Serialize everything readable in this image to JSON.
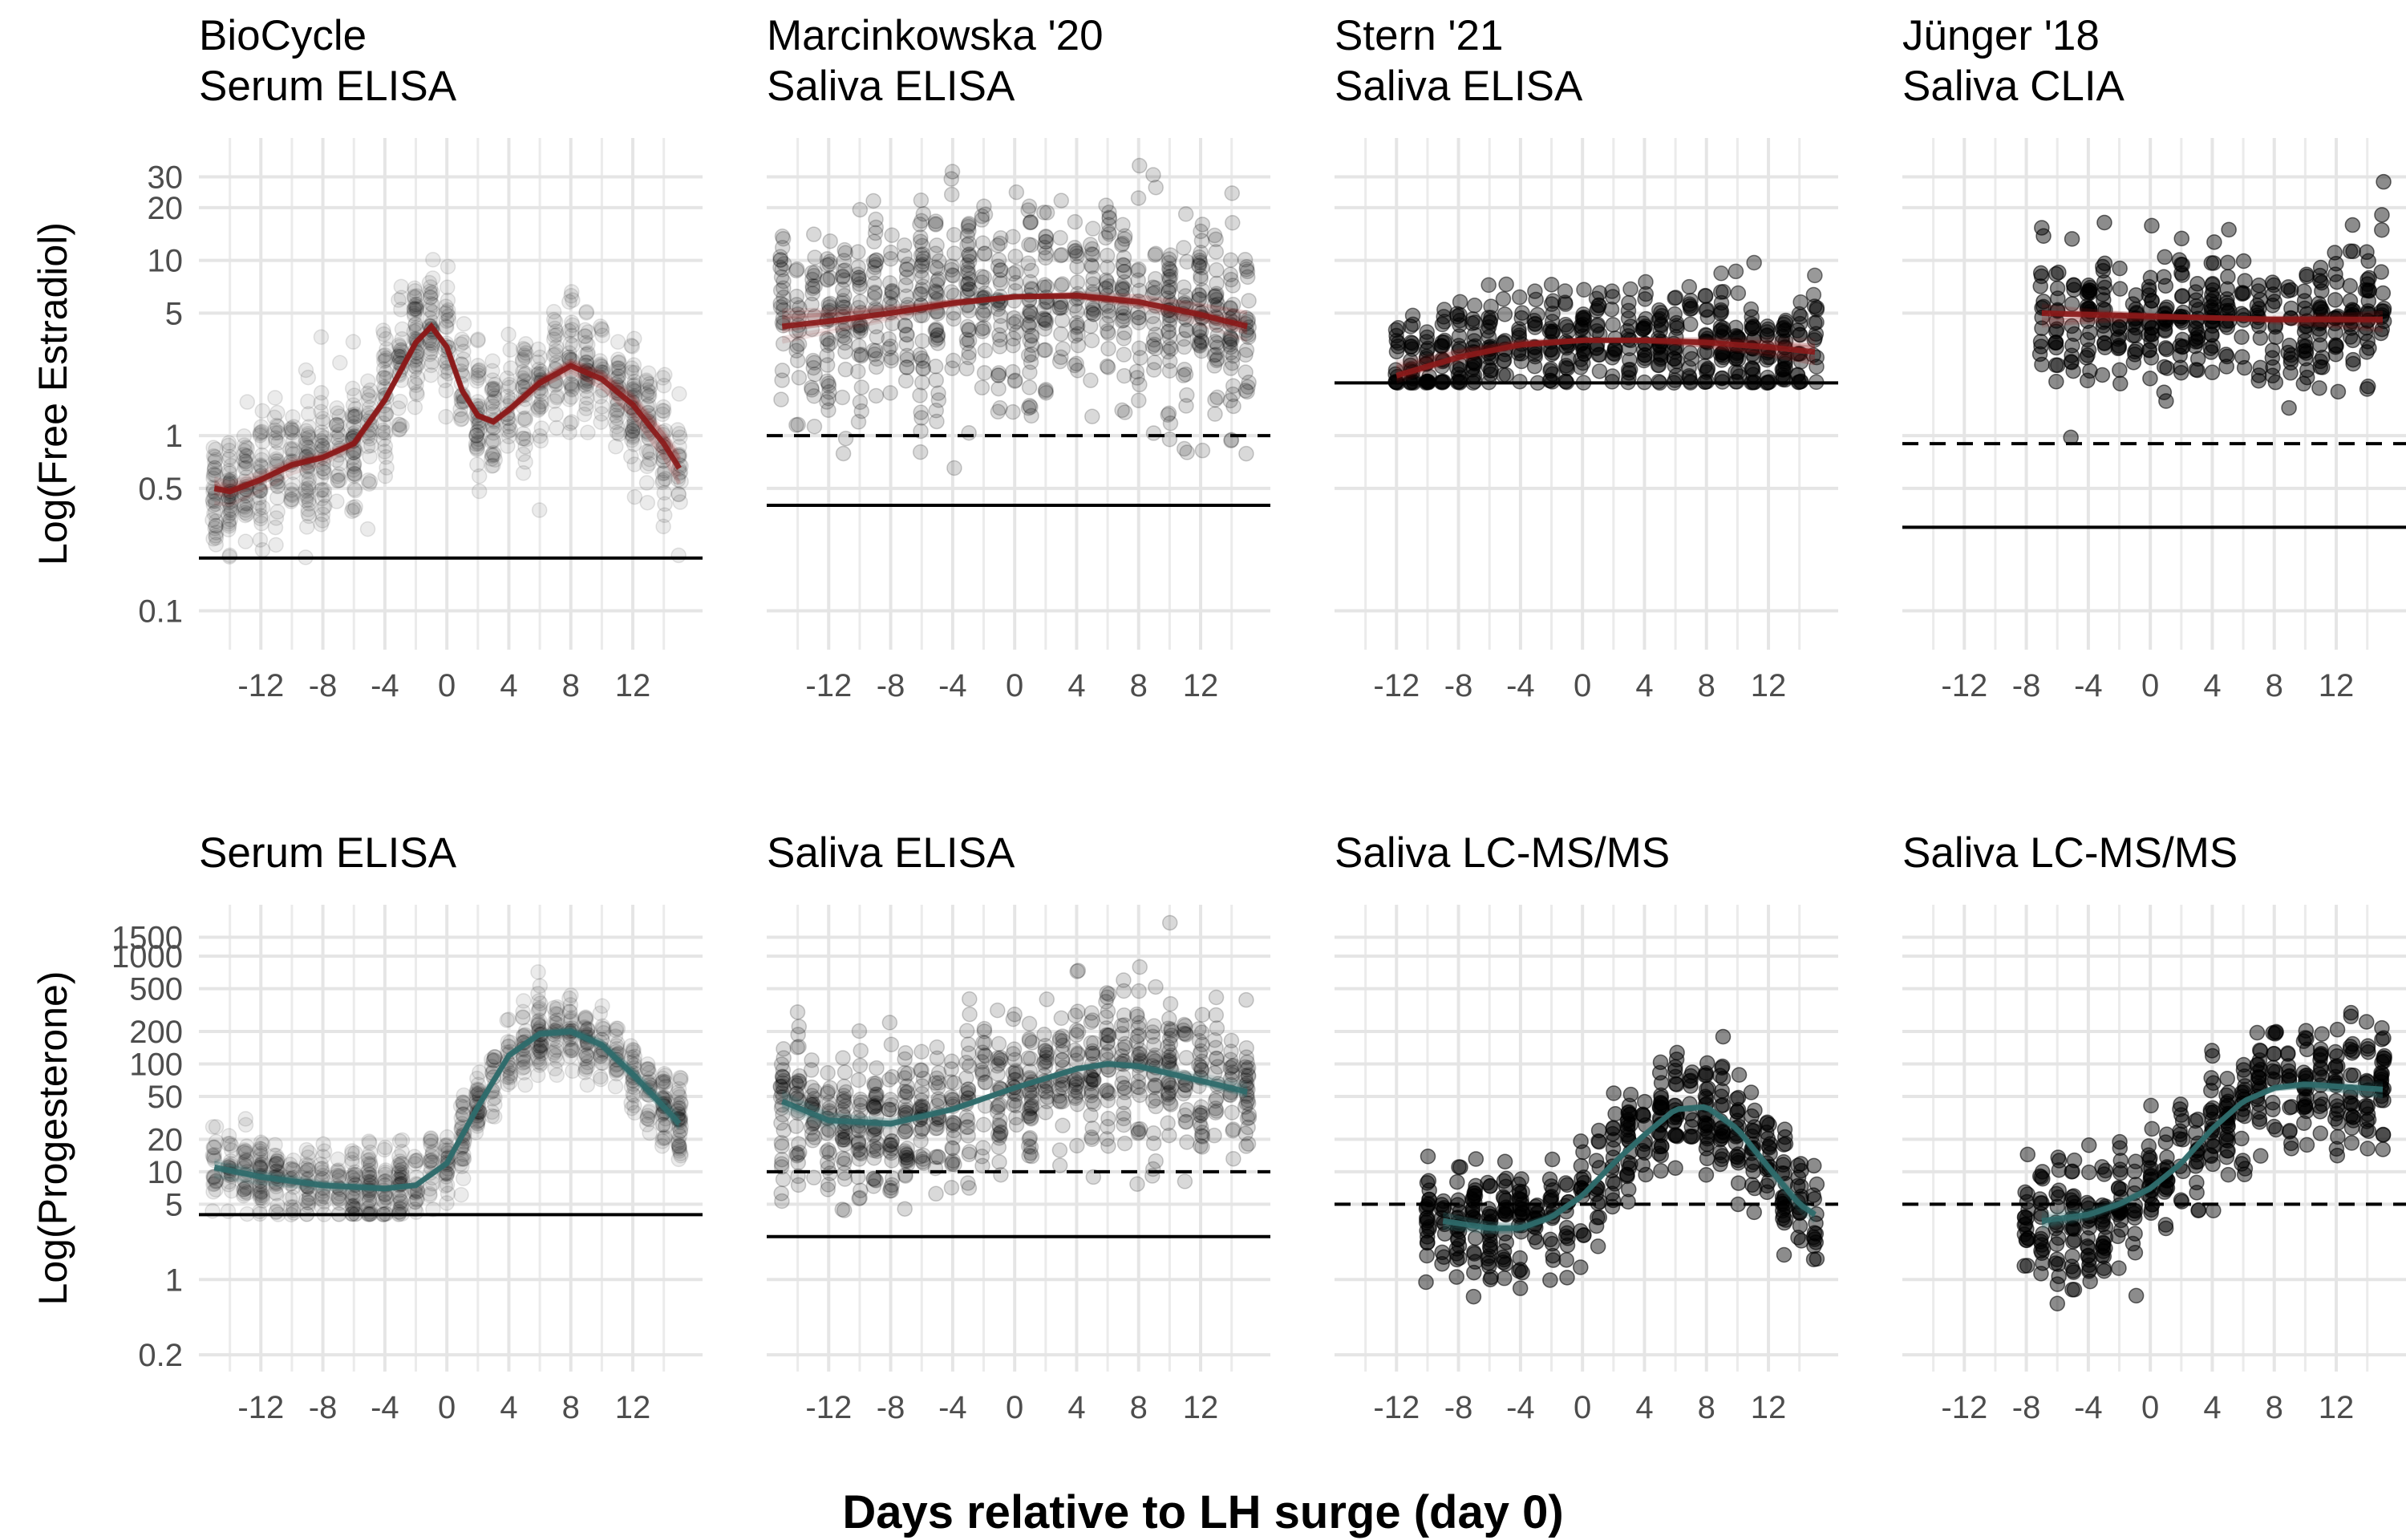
{
  "figure": {
    "xlabel": "Days relative to LH surge (day 0)"
  },
  "colors": {
    "estradiol": "#8b1a1a",
    "progesterone": "#2f6b6b",
    "points": "#000000",
    "grid": "#ebebeb"
  },
  "chart_data": [
    {
      "type": "scatter",
      "row": 0,
      "col": 0,
      "title_line1": "BioCycle",
      "title_line2": "Serum ELISA",
      "ylabel": "Log(Free Estradiol)",
      "x_ticks": [
        -12,
        -8,
        -4,
        0,
        4,
        8,
        12
      ],
      "xlim": [
        -16,
        16.5
      ],
      "y_scale": "log",
      "ylim": [
        0.06,
        50
      ],
      "y_ticks": [
        0.1,
        0.5,
        1,
        5,
        10,
        20,
        30
      ],
      "y_tick_labels": [
        "0.1",
        "0.5",
        "1",
        "5",
        "10",
        "20",
        "30"
      ],
      "point_alpha": 0.08,
      "x_range": [
        -15,
        15
      ],
      "lod_solid": 0.2,
      "lod_dashed": null,
      "spread_low": 0.5,
      "spread_high": 2.0,
      "fit": [
        [
          -15,
          0.5
        ],
        [
          -14,
          0.48
        ],
        [
          -12,
          0.56
        ],
        [
          -10,
          0.68
        ],
        [
          -8,
          0.75
        ],
        [
          -6,
          0.9
        ],
        [
          -4,
          1.6
        ],
        [
          -2,
          3.4
        ],
        [
          -1,
          4.2
        ],
        [
          0,
          3.2
        ],
        [
          1,
          1.8
        ],
        [
          2,
          1.3
        ],
        [
          3,
          1.2
        ],
        [
          4,
          1.4
        ],
        [
          6,
          2.0
        ],
        [
          8,
          2.5
        ],
        [
          10,
          2.1
        ],
        [
          12,
          1.5
        ],
        [
          14,
          0.9
        ],
        [
          15,
          0.65
        ]
      ]
    },
    {
      "type": "scatter",
      "row": 0,
      "col": 1,
      "title_line1": "Marcinkowska '20",
      "title_line2": "Saliva ELISA",
      "x_ticks": [
        -12,
        -8,
        -4,
        0,
        4,
        8,
        12
      ],
      "xlim": [
        -16,
        16.5
      ],
      "y_scale": "log",
      "ylim": [
        0.06,
        50
      ],
      "y_ticks": [
        0.1,
        0.5,
        1,
        5,
        10,
        20,
        30
      ],
      "point_alpha": 0.15,
      "x_range": [
        -15,
        15
      ],
      "lod_solid": 0.4,
      "lod_dashed": 1.0,
      "spread_low": 0.3,
      "spread_high": 3.0,
      "fit": [
        [
          -15,
          4.2
        ],
        [
          -12,
          4.5
        ],
        [
          -8,
          5.0
        ],
        [
          -4,
          5.7
        ],
        [
          0,
          6.2
        ],
        [
          4,
          6.3
        ],
        [
          8,
          5.8
        ],
        [
          12,
          4.9
        ],
        [
          15,
          4.2
        ]
      ]
    },
    {
      "type": "scatter",
      "row": 0,
      "col": 2,
      "title_line1": "Stern '21",
      "title_line2": "Saliva ELISA",
      "x_ticks": [
        -12,
        -8,
        -4,
        0,
        4,
        8,
        12
      ],
      "xlim": [
        -16,
        16.5
      ],
      "y_scale": "log",
      "ylim": [
        0.06,
        50
      ],
      "y_ticks": [
        0.1,
        0.5,
        1,
        5,
        10,
        20,
        30
      ],
      "point_alpha": 0.4,
      "x_range": [
        -12,
        15
      ],
      "lod_solid": 2.0,
      "lod_dashed": null,
      "spread_low": 0.55,
      "spread_high": 1.9,
      "fit": [
        [
          -12,
          2.2
        ],
        [
          -8,
          2.8
        ],
        [
          -4,
          3.3
        ],
        [
          0,
          3.5
        ],
        [
          4,
          3.5
        ],
        [
          8,
          3.4
        ],
        [
          12,
          3.2
        ],
        [
          15,
          3.0
        ]
      ]
    },
    {
      "type": "scatter",
      "row": 0,
      "col": 3,
      "title_line1": "Jünger '18",
      "title_line2": "Saliva CLIA",
      "x_ticks": [
        -12,
        -8,
        -4,
        0,
        4,
        8,
        12
      ],
      "xlim": [
        -16,
        16.5
      ],
      "y_scale": "log",
      "ylim": [
        0.06,
        50
      ],
      "y_ticks": [
        0.1,
        0.5,
        1,
        5,
        10,
        20,
        30
      ],
      "point_alpha": 0.45,
      "x_range": [
        -7,
        15
      ],
      "lod_solid": 0.3,
      "lod_dashed": 0.9,
      "spread_low": 0.45,
      "spread_high": 2.2,
      "fit": [
        [
          -7,
          5.0
        ],
        [
          -4,
          4.9
        ],
        [
          0,
          4.8
        ],
        [
          4,
          4.7
        ],
        [
          8,
          4.6
        ],
        [
          12,
          4.6
        ],
        [
          15,
          4.6
        ]
      ]
    },
    {
      "type": "scatter",
      "row": 1,
      "col": 0,
      "title_line1": "Serum ELISA",
      "ylabel": "Log(Progesterone)",
      "x_ticks": [
        -12,
        -8,
        -4,
        0,
        4,
        8,
        12
      ],
      "xlim": [
        -16,
        16.5
      ],
      "y_scale": "log",
      "ylim": [
        0.14,
        3000
      ],
      "y_ticks": [
        0.2,
        1,
        5,
        10,
        20,
        50,
        100,
        200,
        500,
        1000,
        1500
      ],
      "y_tick_labels": [
        "0.2",
        "1",
        "5",
        "10",
        "20",
        "50",
        "100",
        "200",
        "500",
        "1000",
        "1500"
      ],
      "point_alpha": 0.08,
      "x_range": [
        -15,
        15
      ],
      "lod_solid": 4.0,
      "lod_dashed": null,
      "spread_low": 0.5,
      "spread_high": 2.0,
      "fit": [
        [
          -15,
          11
        ],
        [
          -12,
          9
        ],
        [
          -8,
          7.5
        ],
        [
          -4,
          7
        ],
        [
          -2,
          7.5
        ],
        [
          0,
          12
        ],
        [
          2,
          40
        ],
        [
          4,
          120
        ],
        [
          6,
          190
        ],
        [
          8,
          200
        ],
        [
          10,
          150
        ],
        [
          12,
          80
        ],
        [
          14,
          40
        ],
        [
          15,
          28
        ]
      ]
    },
    {
      "type": "scatter",
      "row": 1,
      "col": 1,
      "title_line1": "Saliva ELISA",
      "x_ticks": [
        -12,
        -8,
        -4,
        0,
        4,
        8,
        12
      ],
      "xlim": [
        -16,
        16.5
      ],
      "y_scale": "log",
      "ylim": [
        0.14,
        3000
      ],
      "y_ticks": [
        0.2,
        1,
        5,
        10,
        20,
        50,
        100,
        200,
        500,
        1000,
        1500
      ],
      "point_alpha": 0.15,
      "x_range": [
        -15,
        15
      ],
      "lod_solid": 2.5,
      "lod_dashed": 10,
      "spread_low": 0.25,
      "spread_high": 3.5,
      "fit": [
        [
          -15,
          45
        ],
        [
          -12,
          30
        ],
        [
          -8,
          28
        ],
        [
          -4,
          38
        ],
        [
          0,
          60
        ],
        [
          4,
          90
        ],
        [
          6,
          100
        ],
        [
          8,
          95
        ],
        [
          12,
          70
        ],
        [
          15,
          55
        ]
      ]
    },
    {
      "type": "scatter",
      "row": 1,
      "col": 2,
      "title_line1": "Saliva LC-MS/MS",
      "x_ticks": [
        -12,
        -8,
        -4,
        0,
        4,
        8,
        12
      ],
      "xlim": [
        -16,
        16.5
      ],
      "y_scale": "log",
      "ylim": [
        0.14,
        3000
      ],
      "y_ticks": [
        0.2,
        1,
        5,
        10,
        20,
        50,
        100,
        200,
        500,
        1000,
        1500
      ],
      "point_alpha": 0.45,
      "x_range": [
        -10,
        15
      ],
      "lod_solid": null,
      "lod_dashed": 5,
      "spread_low": 0.35,
      "spread_high": 2.8,
      "fit": [
        [
          -9,
          3.5
        ],
        [
          -6,
          3.0
        ],
        [
          -4,
          3.0
        ],
        [
          -2,
          3.8
        ],
        [
          0,
          6
        ],
        [
          2,
          12
        ],
        [
          4,
          22
        ],
        [
          6,
          38
        ],
        [
          8,
          40
        ],
        [
          10,
          25
        ],
        [
          12,
          11
        ],
        [
          14,
          5
        ],
        [
          15,
          4
        ]
      ]
    },
    {
      "type": "scatter",
      "row": 1,
      "col": 3,
      "title_line1": "Saliva LC-MS/MS",
      "x_ticks": [
        -12,
        -8,
        -4,
        0,
        4,
        8,
        12
      ],
      "xlim": [
        -16,
        16.5
      ],
      "y_scale": "log",
      "ylim": [
        0.14,
        3000
      ],
      "y_ticks": [
        0.2,
        1,
        5,
        10,
        20,
        50,
        100,
        200,
        500,
        1000,
        1500
      ],
      "point_alpha": 0.45,
      "x_range": [
        -8,
        15
      ],
      "lod_solid": null,
      "lod_dashed": 5,
      "spread_low": 0.3,
      "spread_high": 3.0,
      "fit": [
        [
          -7,
          3.5
        ],
        [
          -4,
          4.0
        ],
        [
          -2,
          5
        ],
        [
          0,
          7
        ],
        [
          2,
          12
        ],
        [
          4,
          25
        ],
        [
          6,
          45
        ],
        [
          8,
          60
        ],
        [
          10,
          65
        ],
        [
          12,
          62
        ],
        [
          15,
          58
        ]
      ]
    }
  ]
}
